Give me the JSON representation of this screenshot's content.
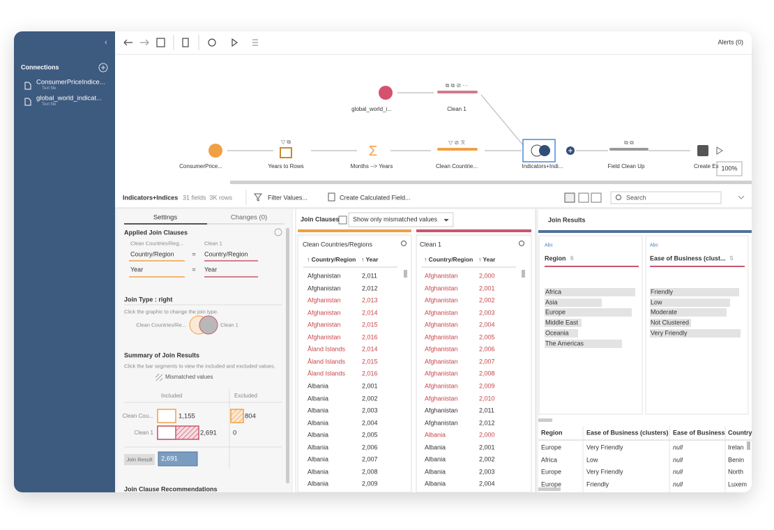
{
  "toolbar": {
    "alerts": "Alerts (0)"
  },
  "sidebar": {
    "title": "Connections",
    "connections": [
      {
        "name": "ConsumerPriceIndice...",
        "sub": "Text file"
      },
      {
        "name": "global_world_indicat...",
        "sub": "Text file"
      }
    ]
  },
  "flow": {
    "nodes": [
      {
        "label": "global_world_i..."
      },
      {
        "label": "Clean 1"
      },
      {
        "label": "ConsumerPrice..."
      },
      {
        "label": "Years to Rows"
      },
      {
        "label": "Months --> Years"
      },
      {
        "label": "Clean Countrie..."
      },
      {
        "label": "Indicators+Indi..."
      },
      {
        "label": "Field Clean Up"
      },
      {
        "label": "Create Ex"
      }
    ],
    "zoom": "100%"
  },
  "panel": {
    "title": "Indicators+Indices",
    "meta": "31 fields  3K rows",
    "filter": "Filter Values...",
    "calc": "Create Calculated Field...",
    "search": "Search"
  },
  "settings": {
    "tabs": [
      "Settings",
      "Changes (0)"
    ],
    "applied_title": "Applied Join Clauses",
    "left_source": "Clean Countries/Reg...",
    "right_source": "Clean 1",
    "clauses": [
      {
        "left": "Country/Region",
        "op": "=",
        "right": "Country/Region"
      },
      {
        "left": "Year",
        "op": "=",
        "right": "Year"
      }
    ],
    "join_type_title": "Join Type : right",
    "join_type_hint": "Click the graphic to change the join type.",
    "venn_left": "Clean Countries/Re...",
    "venn_right": "Clean 1",
    "summary_title": "Summary of Join Results",
    "summary_hint": "Click the bar segments to view the included and excluded values.",
    "mismatched": "Mismatched values",
    "col_included": "Included",
    "col_excluded": "Excluded",
    "rows": [
      {
        "label": "Clean Cou...",
        "included": "1,155",
        "excluded": "804"
      },
      {
        "label": "Clean 1",
        "included": "2,691",
        "excluded": "0"
      }
    ],
    "result_label": "Join Result",
    "result_value": "2,691",
    "recommend": "Join Clause Recommendations"
  },
  "join_clauses": {
    "label": "Join Clauses",
    "dropdown": "Show only mismatched values",
    "tables": [
      {
        "name": "Clean Countries/Regions",
        "columns": [
          "↑ Country/Region",
          "↑ Year"
        ],
        "rows": [
          [
            "Afghanistan",
            "2,011",
            false
          ],
          [
            "Afghanistan",
            "2,012",
            false
          ],
          [
            "Afghanistan",
            "2,013",
            true
          ],
          [
            "Afghanistan",
            "2,014",
            true
          ],
          [
            "Afghanistan",
            "2,015",
            true
          ],
          [
            "Afghanistan",
            "2,016",
            true
          ],
          [
            "Åland Islands",
            "2,014",
            true
          ],
          [
            "Åland Islands",
            "2,015",
            true
          ],
          [
            "Åland Islands",
            "2,016",
            true
          ],
          [
            "Albania",
            "2,001",
            false
          ],
          [
            "Albania",
            "2,002",
            false
          ],
          [
            "Albania",
            "2,003",
            false
          ],
          [
            "Albania",
            "2,004",
            false
          ],
          [
            "Albania",
            "2,005",
            false
          ],
          [
            "Albania",
            "2,006",
            false
          ],
          [
            "Albania",
            "2,007",
            false
          ],
          [
            "Albania",
            "2,008",
            false
          ],
          [
            "Albania",
            "2,009",
            false
          ]
        ]
      },
      {
        "name": "Clean 1",
        "columns": [
          "↑ Country/Region",
          "↑ Year"
        ],
        "rows": [
          [
            "Afghanistan",
            "2,000",
            true
          ],
          [
            "Afghanistan",
            "2,001",
            true
          ],
          [
            "Afghanistan",
            "2,002",
            true
          ],
          [
            "Afghanistan",
            "2,003",
            true
          ],
          [
            "Afghanistan",
            "2,004",
            true
          ],
          [
            "Afghanistan",
            "2,005",
            true
          ],
          [
            "Afghanistan",
            "2,006",
            true
          ],
          [
            "Afghanistan",
            "2,007",
            true
          ],
          [
            "Afghanistan",
            "2,008",
            true
          ],
          [
            "Afghanistan",
            "2,009",
            true
          ],
          [
            "Afghanistan",
            "2,010",
            true
          ],
          [
            "Afghanistan",
            "2,011",
            false
          ],
          [
            "Afghanistan",
            "2,012",
            false
          ],
          [
            "Albania",
            "2,000",
            true
          ],
          [
            "Albania",
            "2,001",
            false
          ],
          [
            "Albania",
            "2,002",
            false
          ],
          [
            "Albania",
            "2,003",
            false
          ],
          [
            "Albania",
            "2,004",
            false
          ]
        ]
      }
    ]
  },
  "join_results": {
    "title": "Join Results",
    "profiles": [
      {
        "type": "Abc",
        "name": "Region",
        "count": "6",
        "values": [
          "Africa",
          "Asia",
          "Europe",
          "Middle East",
          "Oceania",
          "The Americas"
        ],
        "bars": [
          54,
          34,
          52,
          22,
          20,
          46
        ]
      },
      {
        "type": "Abc",
        "name": "Ease of Business (clust...",
        "count": "5",
        "values": [
          "Friendly",
          "Low",
          "Moderate",
          "Not Clustered",
          "Very Friendly"
        ],
        "bars": [
          52,
          47,
          45,
          24,
          53
        ]
      }
    ],
    "grid": {
      "columns": [
        "Region",
        "Ease of Business (clusters)",
        "Ease of Business",
        "Country"
      ],
      "rows": [
        [
          "Europe",
          "Very Friendly",
          "null",
          "Irelan"
        ],
        [
          "Africa",
          "Low",
          "null",
          "Benin"
        ],
        [
          "Europe",
          "Very Friendly",
          "null",
          "North"
        ],
        [
          "Europe",
          "Friendly",
          "null",
          "Luxem"
        ]
      ]
    }
  }
}
